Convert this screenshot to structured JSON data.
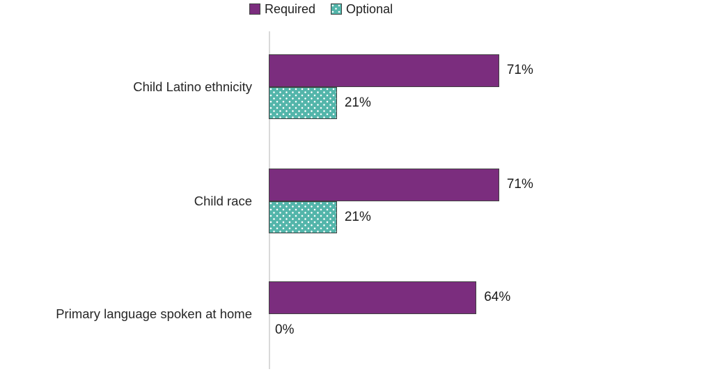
{
  "chart_data": {
    "type": "bar",
    "orientation": "horizontal",
    "title": "",
    "categories": [
      "Child Latino ethnicity",
      "Child race",
      "Primary language spoken at home"
    ],
    "series": [
      {
        "name": "Required",
        "values": [
          71,
          71,
          64
        ],
        "color": "#7b2d7e",
        "pattern": "solid"
      },
      {
        "name": "Optional",
        "values": [
          21,
          21,
          0
        ],
        "color": "#53b5aa",
        "pattern": "white-dots"
      }
    ],
    "value_labels": [
      [
        "71%",
        "21%"
      ],
      [
        "71%",
        "21%"
      ],
      [
        "64%",
        "0%"
      ]
    ],
    "xlabel": "",
    "ylabel": "",
    "xlim": [
      0,
      100
    ],
    "grid": false,
    "legend_position": "top-center",
    "colors": {
      "bar_border": "#404040",
      "axis_line": "#d9d9d9",
      "text": "#1f1f1f",
      "background": "#ffffff"
    }
  }
}
